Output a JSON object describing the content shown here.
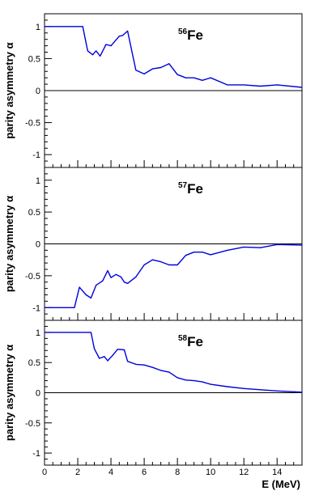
{
  "colors": {
    "series": "#0000dd",
    "axis": "#000000",
    "zero_line": "#000000"
  },
  "chart_data": [
    {
      "type": "line",
      "isotope_mass": "56",
      "isotope_symbol": "Fe",
      "ylabel": "parity asymmetry α",
      "xlabel": "E (MeV)",
      "xlim": [
        0,
        15.5
      ],
      "ylim": [
        -1.2,
        1.2
      ],
      "x_ticks": [
        "0",
        "2",
        "4",
        "6",
        "8",
        "10",
        "12",
        "14"
      ],
      "y_ticks": [
        "-1",
        "-0.5",
        "0",
        "0.5",
        "1"
      ],
      "zero_line": true,
      "x": [
        0,
        2.3,
        2.6,
        2.9,
        3.1,
        3.35,
        3.7,
        4.0,
        4.2,
        4.5,
        4.7,
        5.0,
        5.5,
        6.0,
        6.5,
        7.0,
        7.5,
        8.0,
        8.5,
        9.0,
        9.5,
        10.0,
        11.0,
        12.0,
        13.0,
        14.0,
        15.5
      ],
      "y": [
        1.0,
        1.0,
        0.62,
        0.56,
        0.62,
        0.54,
        0.72,
        0.7,
        0.76,
        0.85,
        0.86,
        0.93,
        0.32,
        0.26,
        0.34,
        0.36,
        0.42,
        0.25,
        0.2,
        0.2,
        0.16,
        0.2,
        0.09,
        0.09,
        0.07,
        0.09,
        0.05
      ]
    },
    {
      "type": "line",
      "isotope_mass": "57",
      "isotope_symbol": "Fe",
      "ylabel": "parity asymmetry α",
      "xlabel": "E (MeV)",
      "xlim": [
        0,
        15.5
      ],
      "ylim": [
        -1.2,
        1.2
      ],
      "x_ticks": [
        "0",
        "2",
        "4",
        "6",
        "8",
        "10",
        "12",
        "14"
      ],
      "y_ticks": [
        "-1",
        "-0.5",
        "0",
        "0.5",
        "1"
      ],
      "zero_line": true,
      "x": [
        0,
        1.8,
        2.1,
        2.5,
        2.8,
        3.1,
        3.5,
        3.8,
        4.0,
        4.3,
        4.6,
        4.8,
        5.0,
        5.5,
        6.0,
        6.5,
        7.0,
        7.5,
        8.0,
        8.5,
        9.0,
        9.5,
        10.0,
        11.0,
        12.0,
        13.0,
        14.0,
        15.5
      ],
      "y": [
        -1.0,
        -1.0,
        -0.68,
        -0.8,
        -0.85,
        -0.65,
        -0.58,
        -0.42,
        -0.53,
        -0.48,
        -0.52,
        -0.6,
        -0.62,
        -0.52,
        -0.33,
        -0.25,
        -0.28,
        -0.33,
        -0.33,
        -0.18,
        -0.13,
        -0.13,
        -0.17,
        -0.1,
        -0.05,
        -0.06,
        -0.01,
        -0.02
      ]
    },
    {
      "type": "line",
      "isotope_mass": "58",
      "isotope_symbol": "Fe",
      "ylabel": "parity asymmetry α",
      "xlabel": "E (MeV)",
      "xlim": [
        0,
        15.5
      ],
      "ylim": [
        -1.2,
        1.2
      ],
      "x_ticks": [
        "0",
        "2",
        "4",
        "6",
        "8",
        "10",
        "12",
        "14"
      ],
      "y_ticks": [
        "-1",
        "-0.5",
        "0",
        "0.5",
        "1"
      ],
      "zero_line": true,
      "x": [
        0,
        2.8,
        3.0,
        3.3,
        3.6,
        3.8,
        4.1,
        4.4,
        4.8,
        5.0,
        5.5,
        6.0,
        6.5,
        7.0,
        7.5,
        8.0,
        8.5,
        9.0,
        9.5,
        10.0,
        11.0,
        12.0,
        13.0,
        14.0,
        15.5
      ],
      "y": [
        1.0,
        1.0,
        0.73,
        0.57,
        0.6,
        0.53,
        0.62,
        0.72,
        0.71,
        0.52,
        0.47,
        0.46,
        0.42,
        0.37,
        0.34,
        0.25,
        0.21,
        0.2,
        0.18,
        0.14,
        0.1,
        0.07,
        0.05,
        0.03,
        0.01
      ]
    }
  ]
}
